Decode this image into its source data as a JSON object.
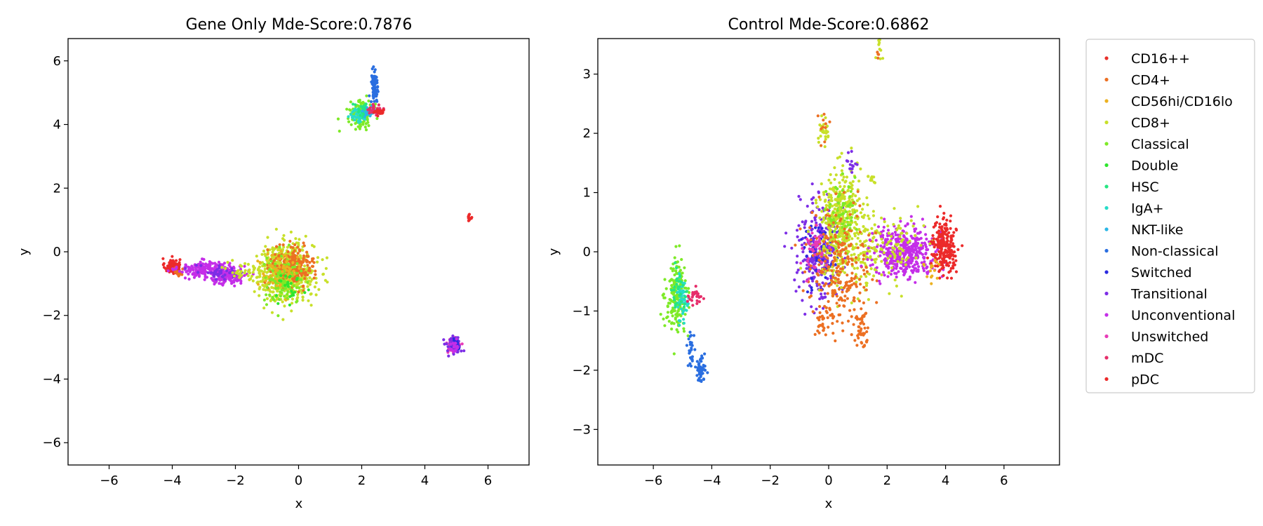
{
  "chart_data": [
    {
      "type": "scatter",
      "title": "Gene Only Mde-Score:0.7876",
      "xlabel": "x",
      "ylabel": "y",
      "xlim": [
        -7.3,
        7.3
      ],
      "ylim": [
        -6.7,
        6.7
      ],
      "xticks": [
        -6,
        -4,
        -2,
        0,
        2,
        4,
        6
      ],
      "yticks": [
        -6,
        -4,
        -2,
        0,
        2,
        4,
        6
      ],
      "grid": false,
      "clusters": [
        {
          "label": "pDC",
          "cx": -4.0,
          "cy": -0.45,
          "sx": 0.12,
          "sy": 0.12,
          "n": 80
        },
        {
          "label": "CD4+",
          "cx": -3.8,
          "cy": -0.65,
          "sx": 0.1,
          "sy": 0.1,
          "n": 15
        },
        {
          "label": "Unconventional",
          "cx": -3.0,
          "cy": -0.55,
          "sx": 0.4,
          "sy": 0.12,
          "n": 180
        },
        {
          "label": "Unconventional",
          "cx": -2.2,
          "cy": -0.75,
          "sx": 0.3,
          "sy": 0.15,
          "n": 150
        },
        {
          "label": "Transitional",
          "cx": -2.5,
          "cy": -0.65,
          "sx": 0.4,
          "sy": 0.12,
          "n": 40
        },
        {
          "label": "CD8+",
          "cx": -1.6,
          "cy": -0.6,
          "sx": 0.35,
          "sy": 0.15,
          "n": 40
        },
        {
          "label": "CD8+",
          "cx": -0.4,
          "cy": -0.65,
          "sx": 0.45,
          "sy": 0.45,
          "n": 520
        },
        {
          "label": "CD4+",
          "cx": -0.2,
          "cy": -0.45,
          "sx": 0.35,
          "sy": 0.3,
          "n": 220
        },
        {
          "label": "Classical",
          "cx": -0.5,
          "cy": -0.95,
          "sx": 0.3,
          "sy": 0.35,
          "n": 120
        },
        {
          "label": "CD56hi/CD16lo",
          "cx": -0.6,
          "cy": -0.6,
          "sx": 0.35,
          "sy": 0.3,
          "n": 60
        },
        {
          "label": "Double",
          "cx": -0.3,
          "cy": -1.1,
          "sx": 0.25,
          "sy": 0.25,
          "n": 25
        },
        {
          "label": "Classical",
          "cx": 2.0,
          "cy": 4.35,
          "sx": 0.18,
          "sy": 0.2,
          "n": 140
        },
        {
          "label": "IgA+",
          "cx": 1.9,
          "cy": 4.3,
          "sx": 0.12,
          "sy": 0.12,
          "n": 50
        },
        {
          "label": "HSC",
          "cx": 2.05,
          "cy": 4.45,
          "sx": 0.12,
          "sy": 0.12,
          "n": 30
        },
        {
          "label": "NKT-like",
          "cx": 2.2,
          "cy": 4.4,
          "sx": 0.1,
          "sy": 0.1,
          "n": 20
        },
        {
          "label": "mDC",
          "cx": 2.45,
          "cy": 4.45,
          "sx": 0.15,
          "sy": 0.07,
          "n": 40
        },
        {
          "label": "pDC",
          "cx": 2.55,
          "cy": 4.4,
          "sx": 0.12,
          "sy": 0.06,
          "n": 25
        },
        {
          "label": "Non-classical",
          "cx": 2.4,
          "cy": 5.2,
          "sx": 0.05,
          "sy": 0.3,
          "n": 80
        },
        {
          "label": "pDC",
          "cx": 5.43,
          "cy": 1.05,
          "sx": 0.03,
          "sy": 0.08,
          "n": 12
        },
        {
          "label": "Unswitched",
          "cx": 4.92,
          "cy": -2.95,
          "sx": 0.1,
          "sy": 0.12,
          "n": 110
        },
        {
          "label": "Transitional",
          "cx": 4.92,
          "cy": -2.95,
          "sx": 0.12,
          "sy": 0.14,
          "n": 50
        },
        {
          "label": "Switched",
          "cx": 4.97,
          "cy": -2.9,
          "sx": 0.07,
          "sy": 0.1,
          "n": 20
        },
        {
          "label": "Unconventional",
          "cx": 4.9,
          "cy": -3.0,
          "sx": 0.1,
          "sy": 0.1,
          "n": 20
        }
      ]
    },
    {
      "type": "scatter",
      "title": "Control Mde-Score:0.6862",
      "xlabel": "x",
      "ylabel": "y",
      "xlim": [
        -7.9,
        7.9
      ],
      "ylim": [
        -3.6,
        3.6
      ],
      "xticks": [
        -6,
        -4,
        -2,
        0,
        2,
        4,
        6
      ],
      "yticks": [
        -3,
        -2,
        -1,
        0,
        1,
        2,
        3
      ],
      "grid": false,
      "clusters": [
        {
          "label": "Classical",
          "cx": -5.2,
          "cy": -0.75,
          "sx": 0.18,
          "sy": 0.3,
          "n": 180
        },
        {
          "label": "IgA+",
          "cx": -5.0,
          "cy": -0.8,
          "sx": 0.12,
          "sy": 0.2,
          "n": 50
        },
        {
          "label": "HSC",
          "cx": -5.1,
          "cy": -0.7,
          "sx": 0.12,
          "sy": 0.2,
          "n": 30
        },
        {
          "label": "mDC",
          "cx": -4.55,
          "cy": -0.75,
          "sx": 0.12,
          "sy": 0.08,
          "n": 25
        },
        {
          "label": "Non-classical",
          "cx": -4.7,
          "cy": -1.6,
          "sx": 0.06,
          "sy": 0.15,
          "n": 25
        },
        {
          "label": "Non-classical",
          "cx": -4.4,
          "cy": -2.0,
          "sx": 0.08,
          "sy": 0.1,
          "n": 50
        },
        {
          "label": "Transitional",
          "cx": -0.35,
          "cy": 0.05,
          "sx": 0.35,
          "sy": 0.45,
          "n": 280
        },
        {
          "label": "Switched",
          "cx": -0.3,
          "cy": 0.0,
          "sx": 0.3,
          "sy": 0.35,
          "n": 60
        },
        {
          "label": "CD8+",
          "cx": 0.4,
          "cy": 0.7,
          "sx": 0.3,
          "sy": 0.35,
          "n": 280
        },
        {
          "label": "Classical",
          "cx": 0.4,
          "cy": 0.6,
          "sx": 0.25,
          "sy": 0.3,
          "n": 80
        },
        {
          "label": "CD8+",
          "cx": 0.8,
          "cy": 0.05,
          "sx": 0.6,
          "sy": 0.35,
          "n": 220
        },
        {
          "label": "CD4+",
          "cx": 0.4,
          "cy": -0.3,
          "sx": 0.55,
          "sy": 0.5,
          "n": 260
        },
        {
          "label": "CD4+",
          "cx": 1.1,
          "cy": -1.3,
          "sx": 0.15,
          "sy": 0.15,
          "n": 40
        },
        {
          "label": "CD4+",
          "cx": -0.2,
          "cy": -1.2,
          "sx": 0.15,
          "sy": 0.1,
          "n": 20
        },
        {
          "label": "Unswitched",
          "cx": -0.5,
          "cy": 0.05,
          "sx": 0.2,
          "sy": 0.2,
          "n": 40
        },
        {
          "label": "Unconventional",
          "cx": 2.6,
          "cy": 0.0,
          "sx": 0.55,
          "sy": 0.2,
          "n": 420
        },
        {
          "label": "CD8+",
          "cx": 2.3,
          "cy": 0.1,
          "sx": 0.5,
          "sy": 0.25,
          "n": 80
        },
        {
          "label": "pDC",
          "cx": 3.95,
          "cy": 0.08,
          "sx": 0.2,
          "sy": 0.22,
          "n": 220
        },
        {
          "label": "CD56hi/CD16lo",
          "cx": 3.5,
          "cy": -0.3,
          "sx": 0.15,
          "sy": 0.1,
          "n": 15
        },
        {
          "label": "CD8+",
          "cx": -0.2,
          "cy": 2.1,
          "sx": 0.1,
          "sy": 0.15,
          "n": 25
        },
        {
          "label": "CD4+",
          "cx": -0.15,
          "cy": 2.15,
          "sx": 0.08,
          "sy": 0.15,
          "n": 10
        },
        {
          "label": "Transitional",
          "cx": 0.8,
          "cy": 1.5,
          "sx": 0.1,
          "sy": 0.08,
          "n": 15
        },
        {
          "label": "CD8+",
          "cx": 1.5,
          "cy": 1.2,
          "sx": 0.1,
          "sy": 0.06,
          "n": 12
        },
        {
          "label": "CD8+",
          "cx": 1.75,
          "cy": 3.45,
          "sx": 0.06,
          "sy": 0.1,
          "n": 10
        },
        {
          "label": "CD4+",
          "cx": 1.7,
          "cy": 3.35,
          "sx": 0.04,
          "sy": 0.05,
          "n": 4
        }
      ]
    }
  ],
  "legend": {
    "placement": "right",
    "entries": [
      {
        "label": "CD16++",
        "color": "#e8302a"
      },
      {
        "label": "CD4+",
        "color": "#ec7023"
      },
      {
        "label": "CD56hi/CD16lo",
        "color": "#ecb120"
      },
      {
        "label": "CD8+",
        "color": "#c8e02a"
      },
      {
        "label": "Classical",
        "color": "#7eea27"
      },
      {
        "label": "Double",
        "color": "#2ee62e"
      },
      {
        "label": "HSC",
        "color": "#25e682"
      },
      {
        "label": "IgA+",
        "color": "#27dcc8"
      },
      {
        "label": "NKT-like",
        "color": "#2ab6e6"
      },
      {
        "label": "Non-classical",
        "color": "#2a6ee0"
      },
      {
        "label": "Switched",
        "color": "#2a2ae0"
      },
      {
        "label": "Transitional",
        "color": "#7d2ee6"
      },
      {
        "label": "Unconventional",
        "color": "#c42ee8"
      },
      {
        "label": "Unswitched",
        "color": "#e83bb8"
      },
      {
        "label": "mDC",
        "color": "#e62e6a"
      },
      {
        "label": "pDC",
        "color": "#ec2a2a"
      }
    ]
  }
}
